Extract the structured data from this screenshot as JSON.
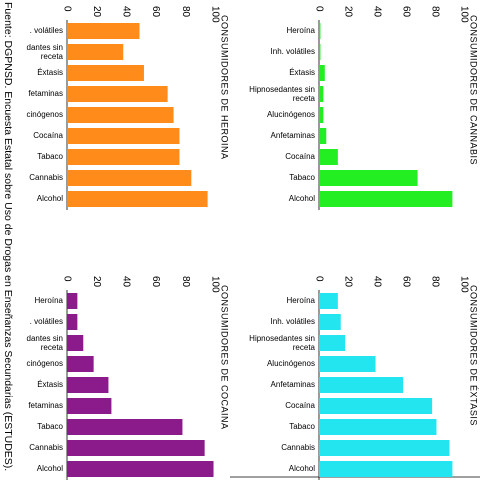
{
  "source": "Fuente: DGPNSD. Encuesta Estatal sobre Uso de Drogas en Enseñanzas Secundarias (ESTUDES).",
  "chart_data": [
    {
      "type": "bar",
      "orientation": "horizontal",
      "title": "CONSUMIDORES DE HEROINA",
      "color": "#ff8c1a",
      "categories": [
        ". volátiles",
        "dantes sin receta",
        "Éxtasis",
        "fetaminas",
        "cinógenos",
        "Cocaína",
        "Tabaco",
        "Cannabis",
        "Alcohol"
      ],
      "values": [
        49,
        38,
        52,
        68,
        72,
        76,
        76,
        84,
        95
      ],
      "xlim": [
        0,
        100
      ],
      "xticks": [
        0,
        20,
        40,
        60,
        80,
        100
      ]
    },
    {
      "type": "bar",
      "orientation": "horizontal",
      "title": "CONSUMIDORES DE CANNABIS",
      "color": "#22ee22",
      "categories": [
        "Heroína",
        "Inh. volátiles",
        "Éxtasis",
        "Hipnosedantes sin receta",
        "Alucinógenos",
        "Anfetaminas",
        "Cocaína",
        "Tabaco",
        "Alcohol"
      ],
      "values": [
        1,
        1,
        4,
        3,
        3,
        5,
        13,
        68,
        92
      ],
      "xlim": [
        0,
        100
      ],
      "xticks": [
        0,
        20,
        40,
        60,
        80,
        100
      ]
    },
    {
      "type": "bar",
      "orientation": "horizontal",
      "title": "CONSUMIDORES DE COCAINA",
      "color": "#8b1a8b",
      "categories": [
        "Heroína",
        ". volátiles",
        "dantes sin receta",
        "cinógenos",
        "Éxtasis",
        "fetaminas",
        "Tabaco",
        "Cannabis",
        "Alcohol"
      ],
      "values": [
        7,
        7,
        11,
        18,
        28,
        30,
        78,
        93,
        99
      ],
      "xlim": [
        0,
        100
      ],
      "xticks": [
        0,
        20,
        40,
        60,
        80,
        100
      ]
    },
    {
      "type": "bar",
      "orientation": "horizontal",
      "title": "CONSUMIDORES DE ÉXTASIS",
      "color": "#22e5f0",
      "categories": [
        "Heroína",
        "Inh. volátiles",
        "Hipnosedantes sin receta",
        "Alucinógenos",
        "Anfetaminas",
        "Cocaína",
        "Tabaco",
        "Cannabis",
        "Alcohol"
      ],
      "values": [
        13,
        15,
        18,
        39,
        58,
        78,
        81,
        90,
        92
      ],
      "xlim": [
        0,
        100
      ],
      "xticks": [
        0,
        20,
        40,
        60,
        80,
        100
      ]
    }
  ]
}
